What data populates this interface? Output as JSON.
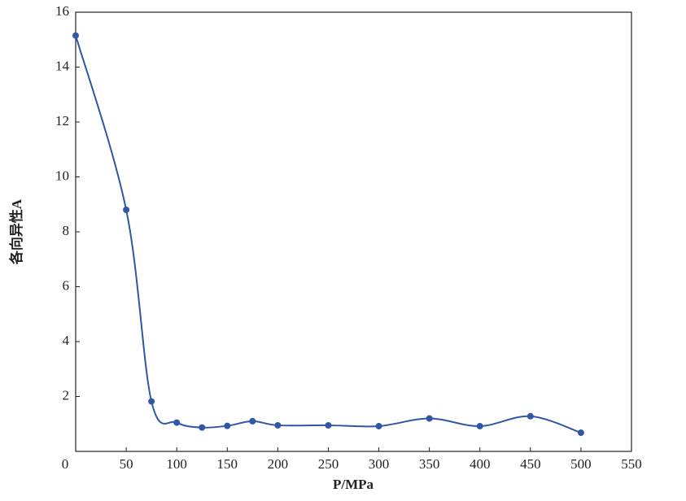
{
  "chart_data": {
    "type": "line",
    "x_label": "P/MPa",
    "y_label": "各向异性A",
    "x": [
      0,
      50,
      75,
      100,
      125,
      150,
      175,
      200,
      250,
      300,
      350,
      400,
      450,
      500
    ],
    "series": [
      {
        "color": "#2f57a5",
        "values": [
          15.15,
          8.8,
          1.82,
          1.05,
          0.87,
          0.93,
          1.1,
          0.95,
          0.95,
          0.92,
          1.2,
          0.92,
          1.28,
          0.68
        ]
      }
    ],
    "xlim": [
      0,
      550
    ],
    "xticks": [
      0,
      50,
      100,
      150,
      200,
      250,
      300,
      350,
      400,
      450,
      500,
      550
    ],
    "ylim": [
      0,
      16
    ],
    "yticks": [
      2,
      4,
      6,
      8,
      10,
      12,
      14,
      16
    ],
    "grid": false,
    "smooth": true
  }
}
